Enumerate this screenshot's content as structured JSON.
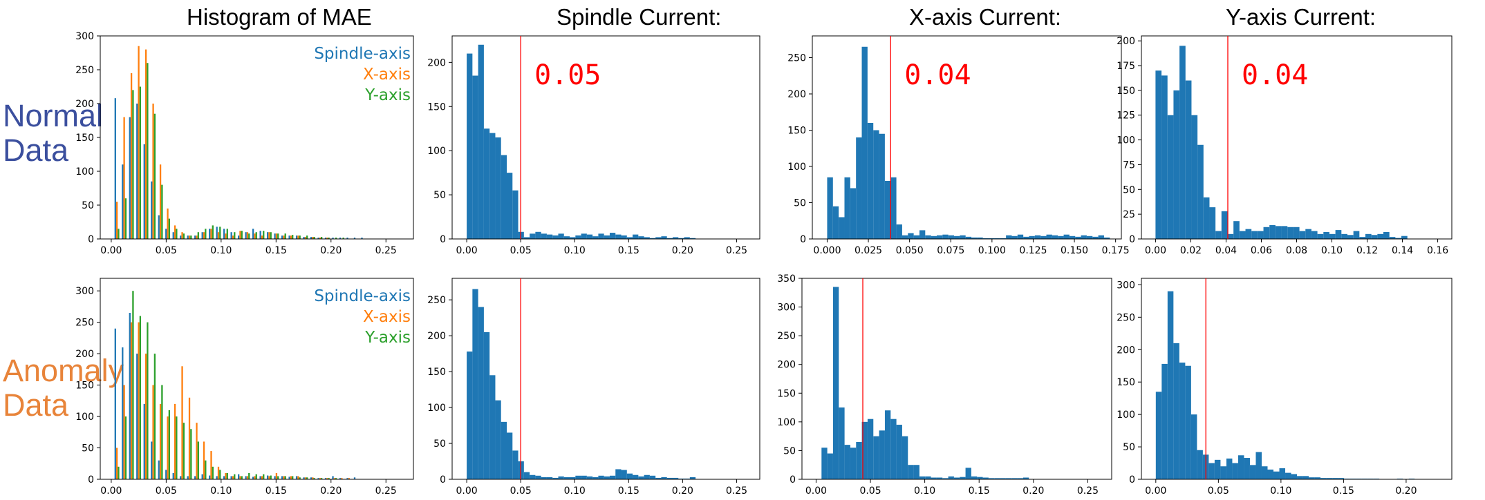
{
  "headers": {
    "mae": "Histogram of MAE",
    "spindle": "Spindle Current:",
    "x": "X-axis Current:",
    "y": "Y-axis Current:"
  },
  "row_labels": {
    "normal": "Normal\nData",
    "anomaly": "Anomaly\nData"
  },
  "colors": {
    "spindle": "#1f77b4",
    "x": "#ff7f0e",
    "y": "#2ca02c",
    "threshold": "#ff0000",
    "normal_label": "#3b4f9e",
    "anomaly_label": "#e8843a"
  },
  "chart_data": [
    {
      "id": "normal-mae",
      "type": "bar",
      "title": "Histogram of MAE",
      "xlim": [
        -0.01,
        0.275
      ],
      "ylim": [
        0,
        300
      ],
      "xticks": [
        0,
        0.05,
        0.1,
        0.15,
        0.2,
        0.25
      ],
      "xticklabels": [
        "0.00",
        "0.05",
        "0.10",
        "0.15",
        "0.20",
        "0.25"
      ],
      "yticks": [
        0,
        50,
        100,
        150,
        200,
        250,
        300
      ],
      "yticklabels": [
        "0",
        "50",
        "100",
        "150",
        "200",
        "250",
        "300"
      ],
      "legend": [
        "Spindle-axis",
        "X-axis",
        "Y-axis"
      ],
      "bin_start": 0.003,
      "bin_width": 0.0066,
      "series": [
        {
          "name": "Spindle-axis",
          "values": [
            208,
            110,
            180,
            200,
            140,
            85,
            35,
            15,
            10,
            5,
            5,
            5,
            10,
            15,
            18,
            15,
            10,
            5,
            10,
            15,
            12,
            10,
            8,
            5,
            5,
            5,
            3,
            3,
            2,
            2,
            2,
            2,
            2,
            2,
            2,
            0,
            0,
            0,
            0,
            0
          ]
        },
        {
          "name": "X-axis",
          "values": [
            55,
            180,
            245,
            285,
            280,
            200,
            110,
            45,
            20,
            10,
            5,
            5,
            10,
            15,
            10,
            8,
            5,
            12,
            10,
            8,
            5,
            10,
            8,
            5,
            5,
            5,
            3,
            3,
            2,
            2,
            0,
            0,
            0,
            0,
            0,
            0,
            0,
            0,
            0,
            0
          ]
        },
        {
          "name": "Y-axis",
          "values": [
            15,
            60,
            220,
            225,
            260,
            185,
            80,
            30,
            15,
            8,
            5,
            10,
            15,
            20,
            18,
            15,
            10,
            12,
            8,
            10,
            12,
            10,
            8,
            8,
            6,
            5,
            5,
            3,
            3,
            2,
            2,
            2,
            0,
            0,
            0,
            0,
            0,
            0,
            0,
            0
          ]
        }
      ]
    },
    {
      "id": "normal-spindle",
      "type": "bar",
      "title": "Spindle Current:",
      "xlim": [
        -0.0135,
        0.2715
      ],
      "ylim": [
        0,
        230
      ],
      "xticks": [
        0,
        0.05,
        0.1,
        0.15,
        0.2,
        0.25
      ],
      "xticklabels": [
        "0.00",
        "0.05",
        "0.10",
        "0.15",
        "0.20",
        "0.25"
      ],
      "yticks": [
        0,
        50,
        100,
        150,
        200
      ],
      "yticklabels": [
        "0",
        "50",
        "100",
        "150",
        "200"
      ],
      "threshold": 0.05,
      "threshold_label": "0.05",
      "bin_start": 0.0,
      "bin_width": 0.0053,
      "values": [
        210,
        185,
        220,
        125,
        120,
        115,
        95,
        75,
        55,
        8,
        2,
        6,
        8,
        6,
        5,
        4,
        6,
        3,
        2,
        4,
        6,
        5,
        3,
        6,
        4,
        7,
        5,
        4,
        2,
        5,
        3,
        2,
        1,
        2,
        3,
        1,
        2,
        1,
        2,
        1
      ]
    },
    {
      "id": "normal-x",
      "type": "bar",
      "title": "X-axis Current:",
      "xlim": [
        -0.009,
        0.1785
      ],
      "ylim": [
        0,
        280
      ],
      "xticks": [
        0,
        0.025,
        0.05,
        0.075,
        0.1,
        0.125,
        0.15,
        0.175
      ],
      "xticklabels": [
        "0.000",
        "0.025",
        "0.050",
        "0.075",
        "0.100",
        "0.125",
        "0.150",
        "0.175"
      ],
      "yticks": [
        0,
        50,
        100,
        150,
        200,
        250
      ],
      "yticklabels": [
        "0",
        "50",
        "100",
        "150",
        "200",
        "250"
      ],
      "threshold": 0.0385,
      "threshold_label": "0.04",
      "bin_start": 0.0,
      "bin_width": 0.0035,
      "values": [
        85,
        45,
        30,
        85,
        70,
        140,
        265,
        160,
        150,
        145,
        80,
        85,
        20,
        5,
        8,
        5,
        12,
        5,
        4,
        5,
        6,
        5,
        4,
        5,
        3,
        2,
        2,
        1,
        1,
        1,
        1,
        5,
        4,
        6,
        3,
        4,
        5,
        4,
        6,
        5,
        4,
        6,
        4,
        3,
        5,
        4,
        3,
        5,
        2
      ]
    },
    {
      "id": "normal-y",
      "type": "bar",
      "title": "Y-axis Current:",
      "xlim": [
        -0.008,
        0.168
      ],
      "ylim": [
        0,
        205
      ],
      "xticks": [
        0,
        0.02,
        0.04,
        0.06,
        0.08,
        0.1,
        0.12,
        0.14,
        0.16
      ],
      "xticklabels": [
        "0.00",
        "0.02",
        "0.04",
        "0.06",
        "0.08",
        "0.10",
        "0.12",
        "0.14",
        "0.16"
      ],
      "yticks": [
        0,
        25,
        50,
        75,
        100,
        125,
        150,
        175,
        200
      ],
      "yticklabels": [
        "0",
        "25",
        "50",
        "75",
        "100",
        "125",
        "150",
        "175",
        "200"
      ],
      "threshold": 0.041,
      "threshold_label": "0.04",
      "bin_start": 0.0,
      "bin_width": 0.0034,
      "values": [
        170,
        165,
        125,
        150,
        195,
        160,
        125,
        95,
        42,
        32,
        8,
        28,
        5,
        18,
        8,
        10,
        8,
        8,
        12,
        14,
        13,
        13,
        12,
        12,
        8,
        10,
        8,
        5,
        7,
        5,
        9,
        5,
        4,
        8,
        2,
        5,
        4,
        5,
        7,
        2,
        1,
        3
      ]
    },
    {
      "id": "anomaly-mae",
      "type": "bar",
      "title": "",
      "xlim": [
        -0.01,
        0.275
      ],
      "ylim": [
        0,
        320
      ],
      "xticks": [
        0,
        0.05,
        0.1,
        0.15,
        0.2,
        0.25
      ],
      "xticklabels": [
        "0.00",
        "0.05",
        "0.10",
        "0.15",
        "0.20",
        "0.25"
      ],
      "yticks": [
        0,
        50,
        100,
        150,
        200,
        250,
        300
      ],
      "yticklabels": [
        "0",
        "50",
        "100",
        "150",
        "200",
        "250",
        "300"
      ],
      "legend": [
        "Spindle-axis",
        "X-axis",
        "Y-axis"
      ],
      "bin_start": 0.003,
      "bin_width": 0.0066,
      "series": [
        {
          "name": "Spindle-axis",
          "values": [
            240,
            210,
            265,
            200,
            120,
            60,
            30,
            15,
            10,
            5,
            5,
            5,
            8,
            6,
            5,
            5,
            5,
            8,
            5,
            4,
            5,
            6,
            5,
            5,
            4,
            5,
            3,
            3,
            2,
            2,
            5,
            2,
            2,
            3,
            0,
            0,
            0,
            0,
            0,
            0
          ]
        },
        {
          "name": "X-axis",
          "values": [
            50,
            150,
            250,
            250,
            200,
            150,
            120,
            100,
            120,
            180,
            130,
            90,
            60,
            45,
            20,
            10,
            5,
            5,
            5,
            5,
            5,
            5,
            10,
            5,
            5,
            5,
            3,
            3,
            2,
            2,
            2,
            2,
            2,
            0,
            0,
            0,
            0,
            0,
            0,
            0
          ]
        },
        {
          "name": "Y-axis",
          "values": [
            20,
            100,
            300,
            260,
            250,
            200,
            150,
            110,
            100,
            90,
            80,
            60,
            30,
            20,
            15,
            10,
            8,
            5,
            10,
            8,
            8,
            6,
            5,
            5,
            5,
            3,
            3,
            2,
            2,
            2,
            2,
            0,
            0,
            0,
            0,
            0,
            0,
            0,
            0,
            0
          ]
        }
      ]
    },
    {
      "id": "anomaly-spindle",
      "type": "bar",
      "title": "",
      "xlim": [
        -0.0135,
        0.2715
      ],
      "ylim": [
        0,
        280
      ],
      "xticks": [
        0,
        0.05,
        0.1,
        0.15,
        0.2,
        0.25
      ],
      "xticklabels": [
        "0.00",
        "0.05",
        "0.10",
        "0.15",
        "0.20",
        "0.25"
      ],
      "yticks": [
        0,
        50,
        100,
        150,
        200,
        250
      ],
      "yticklabels": [
        "0",
        "50",
        "100",
        "150",
        "200",
        "250"
      ],
      "threshold": 0.05,
      "threshold_label": "",
      "bin_start": 0.0,
      "bin_width": 0.0053,
      "values": [
        178,
        265,
        240,
        205,
        145,
        110,
        80,
        65,
        40,
        25,
        10,
        6,
        5,
        3,
        3,
        2,
        4,
        3,
        3,
        5,
        5,
        4,
        3,
        5,
        4,
        5,
        14,
        13,
        8,
        6,
        4,
        6,
        5,
        2,
        3,
        2,
        2,
        1,
        1,
        3
      ]
    },
    {
      "id": "anomaly-x",
      "type": "bar",
      "title": "",
      "xlim": [
        -0.013,
        0.272
      ],
      "ylim": [
        0,
        350
      ],
      "xticks": [
        0,
        0.05,
        0.1,
        0.15,
        0.2,
        0.25
      ],
      "xticklabels": [
        "0.00",
        "0.05",
        "0.10",
        "0.15",
        "0.20",
        "0.25"
      ],
      "yticks": [
        0,
        50,
        100,
        150,
        200,
        250,
        300,
        350
      ],
      "yticklabels": [
        "0",
        "50",
        "100",
        "150",
        "200",
        "250",
        "300",
        "350"
      ],
      "threshold": 0.043,
      "threshold_label": "",
      "bin_start": 0.005,
      "bin_width": 0.0053,
      "values": [
        55,
        45,
        335,
        125,
        60,
        55,
        65,
        100,
        105,
        75,
        85,
        120,
        105,
        95,
        75,
        25,
        25,
        5,
        5,
        3,
        3,
        2,
        5,
        3,
        4,
        20,
        5,
        4,
        3,
        2,
        2,
        2,
        2,
        2,
        2,
        3
      ]
    },
    {
      "id": "anomaly-y",
      "type": "bar",
      "title": "",
      "xlim": [
        -0.0115,
        0.2365
      ],
      "ylim": [
        0,
        310
      ],
      "xticks": [
        0,
        0.05,
        0.1,
        0.15,
        0.2
      ],
      "xticklabels": [
        "0.00",
        "0.05",
        "0.10",
        "0.15",
        "0.20"
      ],
      "yticks": [
        0,
        50,
        100,
        150,
        200,
        250,
        300
      ],
      "yticklabels": [
        "0",
        "50",
        "100",
        "150",
        "200",
        "250",
        "300"
      ],
      "threshold": 0.04,
      "threshold_label": "",
      "bin_start": 0.0,
      "bin_width": 0.0047,
      "values": [
        135,
        178,
        290,
        210,
        180,
        175,
        100,
        45,
        38,
        25,
        30,
        20,
        32,
        25,
        37,
        33,
        22,
        42,
        20,
        15,
        12,
        17,
        10,
        8,
        5,
        5,
        3,
        3,
        2,
        2,
        2,
        2,
        1,
        1,
        1,
        1,
        1,
        1,
        0,
        0,
        0,
        1,
        0,
        1,
        0,
        0
      ]
    }
  ]
}
